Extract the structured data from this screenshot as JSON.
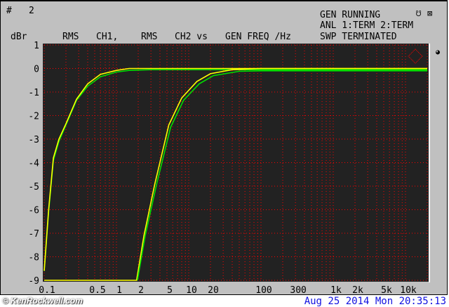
{
  "header": {
    "number_label": "#",
    "number_value": "2",
    "status": [
      "GEN RUNNING",
      "ANL 1:TERM 2:TERM",
      "SWP TERMINATED"
    ],
    "icons": [
      "generator-icon",
      "speaker-muted-icon"
    ]
  },
  "chart_data": {
    "type": "line",
    "title_parts": [
      "RMS",
      "CH1,",
      "RMS",
      "CH2 vs",
      "GEN FREQ /Hz"
    ],
    "ylabel": "dBr",
    "xscale": "log",
    "xlim": [
      0.1,
      20000
    ],
    "ylim": [
      -9,
      1
    ],
    "yticks": [
      1,
      0,
      -1,
      -2,
      -3,
      -4,
      -5,
      -6,
      -7,
      -8,
      -9
    ],
    "xticks": [
      {
        "v": 0.1,
        "l": "0.1"
      },
      {
        "v": 0.5,
        "l": "0.5"
      },
      {
        "v": 1,
        "l": "1"
      },
      {
        "v": 2,
        "l": "2"
      },
      {
        "v": 5,
        "l": "5"
      },
      {
        "v": 10,
        "l": "10"
      },
      {
        "v": 20,
        "l": "20"
      },
      {
        "v": 100,
        "l": "100"
      },
      {
        "v": 300,
        "l": "300"
      },
      {
        "v": 1000,
        "l": "1k"
      },
      {
        "v": 2000,
        "l": "2k"
      },
      {
        "v": 5000,
        "l": "5k"
      },
      {
        "v": 10000,
        "l": "10k"
      }
    ],
    "grid": true,
    "colors": {
      "background": "#222222",
      "grid": "#ff0000",
      "trace_a": "#ffff00",
      "trace_b": "#00e000"
    },
    "series": [
      {
        "color": "#00e000",
        "points": [
          [
            0.1,
            -8.6
          ],
          [
            0.115,
            -6.1
          ],
          [
            0.134,
            -3.9
          ],
          [
            0.16,
            -3.1
          ],
          [
            0.2,
            -2.4
          ],
          [
            0.28,
            -1.35
          ],
          [
            0.4,
            -0.75
          ],
          [
            0.6,
            -0.35
          ],
          [
            1,
            -0.15
          ],
          [
            1.5,
            -0.08
          ],
          [
            3,
            -0.05
          ],
          [
            20000,
            -0.05
          ]
        ]
      },
      {
        "color": "#ffff00",
        "points": [
          [
            0.1,
            -8.6
          ],
          [
            0.115,
            -6.0
          ],
          [
            0.134,
            -3.8
          ],
          [
            0.16,
            -3.0
          ],
          [
            0.2,
            -2.35
          ],
          [
            0.28,
            -1.3
          ],
          [
            0.4,
            -0.65
          ],
          [
            0.6,
            -0.25
          ],
          [
            1,
            -0.08
          ],
          [
            1.5,
            0
          ],
          [
            20000,
            0
          ]
        ]
      },
      {
        "color": "#ffff00",
        "points": [
          [
            0.1,
            -9
          ],
          [
            1.9,
            -9
          ],
          [
            2.4,
            -7.1
          ],
          [
            3.4,
            -4.9
          ],
          [
            5.3,
            -2.4
          ],
          [
            8,
            -1.25
          ],
          [
            13,
            -0.55
          ],
          [
            20,
            -0.22
          ],
          [
            40,
            -0.05
          ],
          [
            100,
            0
          ],
          [
            20000,
            0
          ]
        ]
      },
      {
        "color": "#00e000",
        "points": [
          [
            1.95,
            -9
          ],
          [
            2.5,
            -7.1
          ],
          [
            3.6,
            -4.9
          ],
          [
            5.6,
            -2.5
          ],
          [
            8.5,
            -1.35
          ],
          [
            14,
            -0.65
          ],
          [
            22,
            -0.3
          ],
          [
            50,
            -0.12
          ],
          [
            100,
            -0.1
          ],
          [
            20000,
            -0.1
          ]
        ]
      }
    ]
  },
  "footer": {
    "copyright": "© KenRockwell.com",
    "datetime": "Aug 25 2014 Mon 20:35:13"
  }
}
